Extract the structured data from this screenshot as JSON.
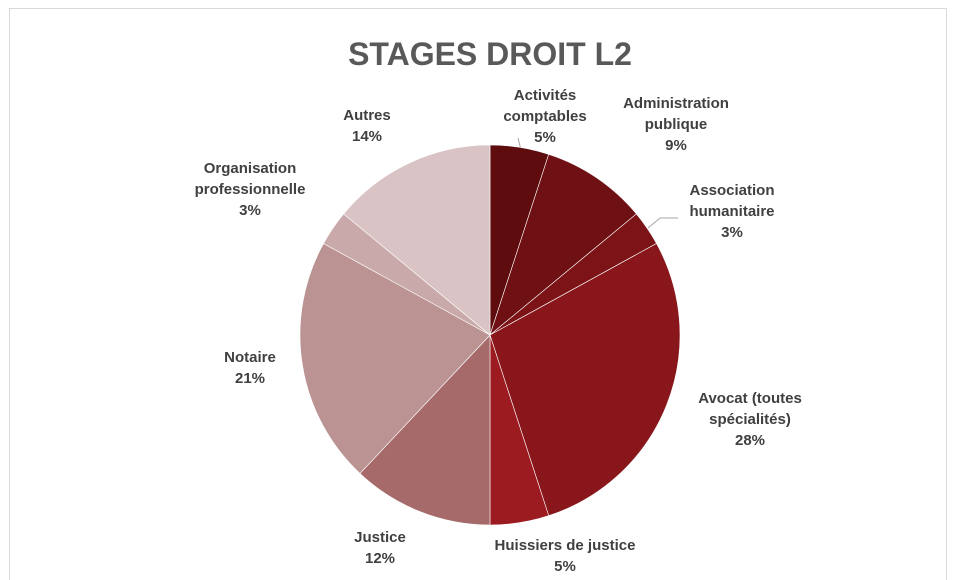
{
  "chart_data": {
    "type": "pie",
    "title": "STAGES DROIT L2",
    "categories": [
      "Activités comptables",
      "Administration publique",
      "Association humanitaire",
      "Avocat (toutes spécialités)",
      "Huissiers de justice",
      "Justice",
      "Notaire",
      "Organisation professionnelle",
      "Autres"
    ],
    "values": [
      5,
      9,
      3,
      28,
      5,
      12,
      21,
      3,
      14
    ],
    "value_labels": [
      "5%",
      "9%",
      "3%",
      "28%",
      "5%",
      "12%",
      "21%",
      "3%",
      "14%"
    ],
    "colors": [
      "#5e0c0e",
      "#6f1014",
      "#7b1317",
      "#88161a",
      "#9b1b20",
      "#a66a6a",
      "#ba9392",
      "#c9a9a9",
      "#d9c3c4"
    ]
  }
}
